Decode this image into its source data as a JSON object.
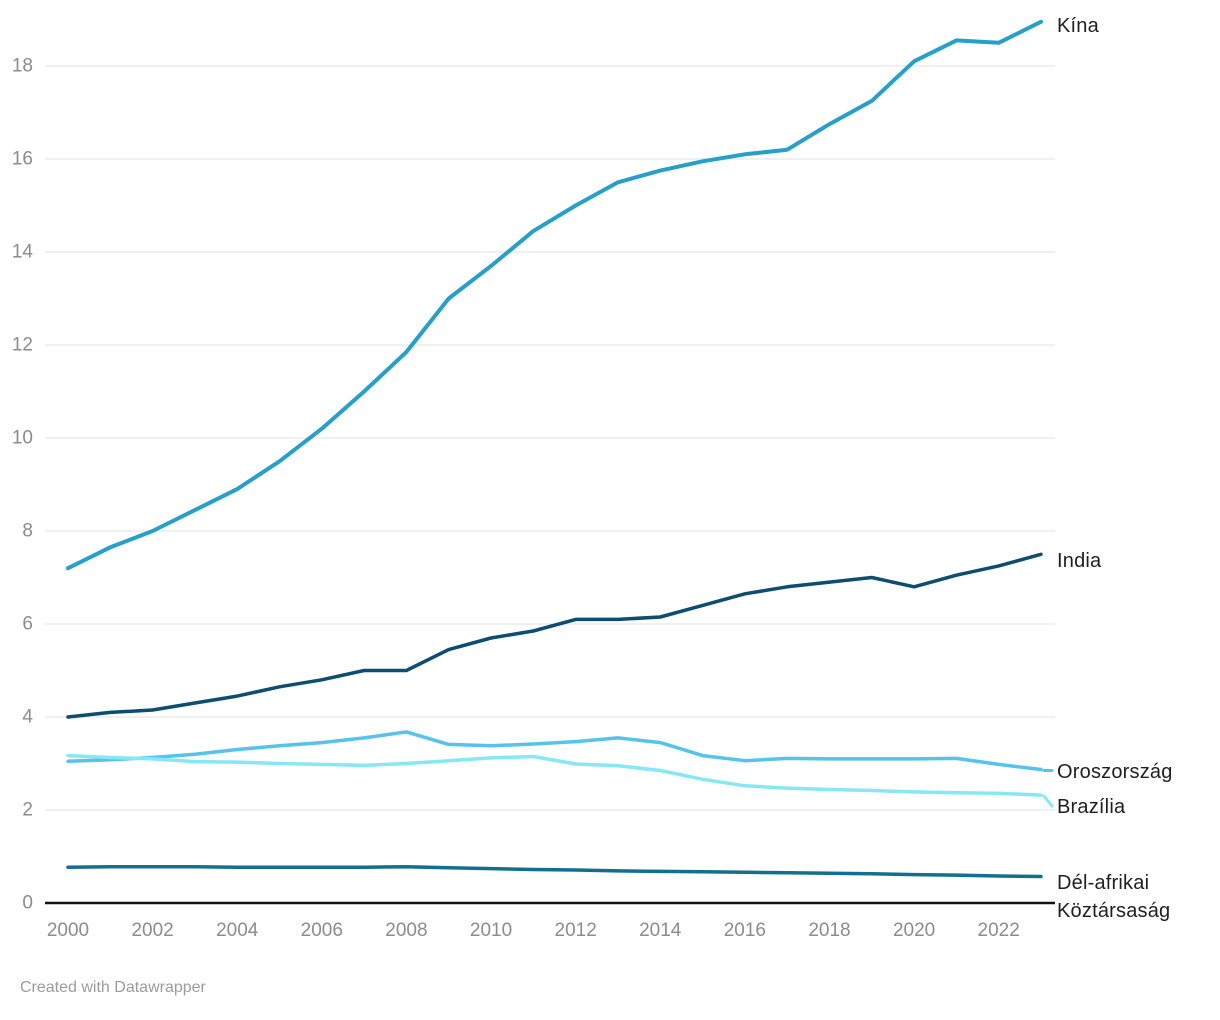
{
  "chart_data": {
    "type": "line",
    "title": "",
    "xlabel": "",
    "ylabel": "",
    "x": [
      2000,
      2001,
      2002,
      2003,
      2004,
      2005,
      2006,
      2007,
      2008,
      2009,
      2010,
      2011,
      2012,
      2013,
      2014,
      2015,
      2016,
      2017,
      2018,
      2019,
      2020,
      2021,
      2022,
      2023
    ],
    "x_tick_labels": [
      "2000",
      "2002",
      "2004",
      "2006",
      "2008",
      "2010",
      "2012",
      "2014",
      "2016",
      "2018",
      "2020",
      "2022"
    ],
    "x_tick_years": [
      2000,
      2002,
      2004,
      2006,
      2008,
      2010,
      2012,
      2014,
      2016,
      2018,
      2020,
      2022
    ],
    "y_ticks": [
      0,
      2,
      4,
      6,
      8,
      10,
      12,
      14,
      16,
      18
    ],
    "ylim": [
      0,
      19.4
    ],
    "xlim": [
      2000,
      2023
    ],
    "grid": "horizontal",
    "legend_position": "line-end-labels-right",
    "series": [
      {
        "name": "Kína",
        "color": "#26a0c8",
        "values": [
          7.2,
          7.65,
          8.0,
          8.45,
          8.9,
          9.5,
          10.2,
          11.0,
          11.85,
          13.0,
          13.7,
          14.45,
          15.0,
          15.5,
          15.75,
          15.95,
          16.1,
          16.2,
          16.75,
          17.25,
          18.1,
          18.55,
          18.5,
          18.95
        ]
      },
      {
        "name": "India",
        "color": "#0d4d6f",
        "values": [
          4.0,
          4.1,
          4.15,
          4.3,
          4.45,
          4.65,
          4.8,
          5.0,
          5.0,
          5.45,
          5.7,
          5.85,
          6.1,
          6.1,
          6.15,
          6.4,
          6.65,
          6.8,
          6.9,
          7.0,
          6.8,
          7.05,
          7.25,
          7.5
        ]
      },
      {
        "name": "Oroszország",
        "color": "#55c3eb",
        "values": [
          3.05,
          3.08,
          3.13,
          3.2,
          3.3,
          3.38,
          3.45,
          3.55,
          3.68,
          3.41,
          3.38,
          3.42,
          3.47,
          3.55,
          3.45,
          3.17,
          3.06,
          3.11,
          3.1,
          3.1,
          3.1,
          3.11,
          2.98,
          2.87
        ]
      },
      {
        "name": "Brazília",
        "color": "#86e8f4",
        "values": [
          3.17,
          3.13,
          3.1,
          3.04,
          3.03,
          3.0,
          2.98,
          2.96,
          3.0,
          3.06,
          3.12,
          3.15,
          2.99,
          2.95,
          2.85,
          2.66,
          2.52,
          2.47,
          2.44,
          2.42,
          2.39,
          2.37,
          2.36,
          2.32
        ]
      },
      {
        "name": "Dél-afrikai Köztársaság",
        "color": "#11708f",
        "values": [
          0.77,
          0.78,
          0.78,
          0.78,
          0.77,
          0.77,
          0.77,
          0.77,
          0.78,
          0.76,
          0.74,
          0.72,
          0.71,
          0.69,
          0.68,
          0.67,
          0.66,
          0.65,
          0.64,
          0.63,
          0.61,
          0.6,
          0.58,
          0.57
        ]
      }
    ]
  },
  "footer": {
    "credit": "Created with Datawrapper"
  },
  "colors": {
    "background": "#ffffff",
    "grid": "#e6e6e6",
    "axis": "#131313",
    "tick_text": "#8c8c8c",
    "label_text": "#1f1f1f",
    "credit_text": "#9c9c9c"
  }
}
